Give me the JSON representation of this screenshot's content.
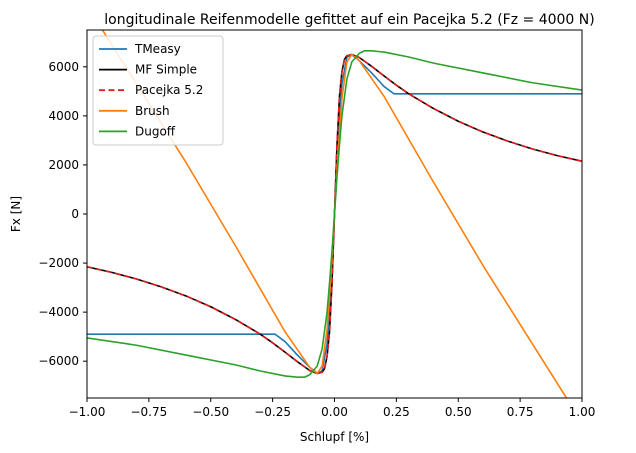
{
  "chart_data": {
    "type": "line",
    "title": "longitudinale Reifenmodelle gefittet auf ein Pacejka 5.2 (Fz = 4000 N)",
    "xlabel": "Schlupf [%]",
    "ylabel": "Fx [N]",
    "xlim": [
      -1.0,
      1.0
    ],
    "ylim": [
      -7500,
      7500
    ],
    "xticks": [
      -1.0,
      -0.75,
      -0.5,
      -0.25,
      0.0,
      0.25,
      0.5,
      0.75,
      1.0
    ],
    "xtick_labels": [
      "−1.00",
      "−0.75",
      "−0.50",
      "−0.25",
      "0.00",
      "0.25",
      "0.50",
      "0.75",
      "1.00"
    ],
    "yticks": [
      -6000,
      -4000,
      -2000,
      0,
      2000,
      4000,
      6000
    ],
    "ytick_labels": [
      "−6000",
      "−4000",
      "−2000",
      "0",
      "2000",
      "4000",
      "6000"
    ],
    "grid": false,
    "legend_position": "top-left",
    "series": [
      {
        "name": "TMeasy",
        "color": "#1f77b4",
        "dash": "solid",
        "x": [
          -1.0,
          -0.24,
          -0.2,
          -0.15,
          -0.1,
          -0.07,
          -0.05,
          -0.03,
          -0.015,
          0.0,
          0.015,
          0.03,
          0.05,
          0.07,
          0.1,
          0.15,
          0.2,
          0.24,
          1.0
        ],
        "y": [
          -4900,
          -4900,
          -5200,
          -5750,
          -6250,
          -6480,
          -6400,
          -5300,
          -3300,
          0,
          3300,
          5300,
          6400,
          6480,
          6250,
          5750,
          5200,
          4900,
          4900
        ]
      },
      {
        "name": "MF Simple",
        "color": "#000000",
        "dash": "solid",
        "x": [
          -1.0,
          -0.9,
          -0.8,
          -0.7,
          -0.6,
          -0.5,
          -0.4,
          -0.3,
          -0.25,
          -0.2,
          -0.15,
          -0.1,
          -0.07,
          -0.05,
          -0.04,
          -0.03,
          -0.02,
          -0.01,
          0.0,
          0.01,
          0.02,
          0.03,
          0.04,
          0.05,
          0.07,
          0.1,
          0.15,
          0.2,
          0.25,
          0.3,
          0.4,
          0.5,
          0.6,
          0.7,
          0.8,
          0.9,
          1.0
        ],
        "y": [
          -2150,
          -2380,
          -2650,
          -2970,
          -3340,
          -3780,
          -4300,
          -4900,
          -5250,
          -5630,
          -6020,
          -6380,
          -6500,
          -6450,
          -6300,
          -5800,
          -4800,
          -2800,
          0,
          2800,
          4800,
          5800,
          6300,
          6450,
          6500,
          6380,
          6020,
          5630,
          5250,
          4900,
          4300,
          3780,
          3340,
          2970,
          2650,
          2380,
          2150
        ]
      },
      {
        "name": "Pacejka 5.2",
        "color": "#e41a1c",
        "dash": "dashed",
        "x": [
          -1.0,
          -0.9,
          -0.8,
          -0.7,
          -0.6,
          -0.5,
          -0.4,
          -0.3,
          -0.25,
          -0.2,
          -0.15,
          -0.1,
          -0.07,
          -0.05,
          -0.04,
          -0.03,
          -0.02,
          -0.01,
          0.0,
          0.01,
          0.02,
          0.03,
          0.04,
          0.05,
          0.07,
          0.1,
          0.15,
          0.2,
          0.25,
          0.3,
          0.4,
          0.5,
          0.6,
          0.7,
          0.8,
          0.9,
          1.0
        ],
        "y": [
          -2150,
          -2380,
          -2650,
          -2970,
          -3340,
          -3780,
          -4300,
          -4900,
          -5250,
          -5630,
          -6020,
          -6380,
          -6500,
          -6450,
          -6300,
          -5800,
          -4800,
          -2800,
          0,
          2800,
          4800,
          5800,
          6300,
          6450,
          6500,
          6380,
          6020,
          5630,
          5250,
          4900,
          4300,
          3780,
          3340,
          2970,
          2650,
          2380,
          2150
        ]
      },
      {
        "name": "Brush",
        "color": "#ff7f0e",
        "dash": "solid",
        "x": [
          -1.0,
          -0.8,
          -0.6,
          -0.4,
          -0.2,
          -0.1,
          -0.07,
          -0.05,
          -0.03,
          -0.015,
          0.0,
          0.015,
          0.03,
          0.05,
          0.07,
          0.1,
          0.2,
          0.4,
          0.6,
          0.8,
          1.0
        ],
        "y": [
          8500,
          5300,
          2100,
          -1300,
          -4800,
          -6250,
          -6500,
          -6200,
          -4700,
          -2600,
          0,
          2600,
          4700,
          6200,
          6500,
          6250,
          4800,
          1300,
          -2100,
          -5300,
          -8500
        ]
      },
      {
        "name": "Dugoff",
        "color": "#2ca02c",
        "dash": "solid",
        "x": [
          -1.0,
          -0.8,
          -0.6,
          -0.4,
          -0.3,
          -0.2,
          -0.15,
          -0.12,
          -0.1,
          -0.07,
          -0.05,
          -0.03,
          -0.02,
          -0.01,
          0.0,
          0.01,
          0.02,
          0.03,
          0.05,
          0.07,
          0.1,
          0.12,
          0.15,
          0.2,
          0.3,
          0.4,
          0.6,
          0.8,
          1.0
        ],
        "y": [
          -5050,
          -5350,
          -5750,
          -6150,
          -6400,
          -6600,
          -6650,
          -6650,
          -6550,
          -6200,
          -5500,
          -4000,
          -2800,
          -1500,
          0,
          1500,
          2800,
          4000,
          5500,
          6200,
          6550,
          6650,
          6650,
          6600,
          6400,
          6150,
          5750,
          5350,
          5050
        ]
      }
    ]
  }
}
